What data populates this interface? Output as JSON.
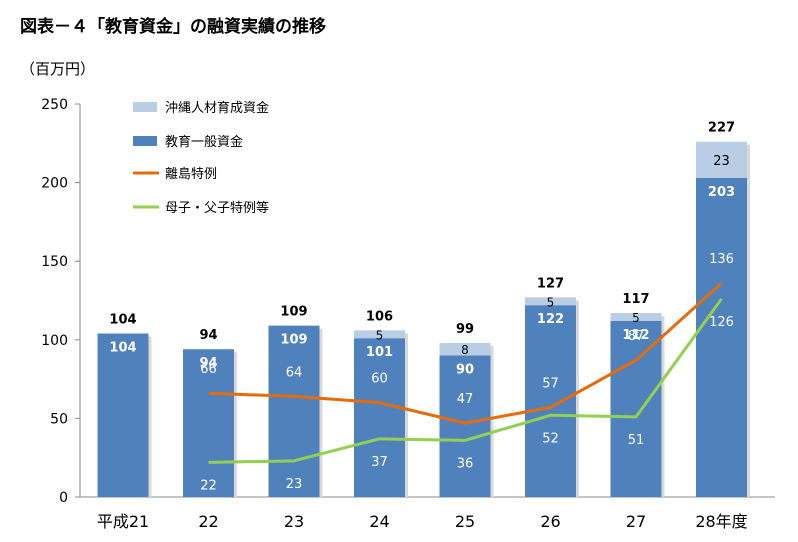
{
  "title": "図表－４「教育資金」の融資実績の推移",
  "unit_label": "（百万円）",
  "chart_data": {
    "type": "bar",
    "stacked": true,
    "categories": [
      "平成21",
      "22",
      "23",
      "24",
      "25",
      "26",
      "27",
      "28年度"
    ],
    "ylim": [
      0,
      250
    ],
    "yticks": [
      0,
      50,
      100,
      150,
      200,
      250
    ],
    "grid": false,
    "legend_position": "top-right",
    "series": [
      {
        "name": "教育一般資金",
        "kind": "bar",
        "color": "#4f81bd",
        "values": [
          104,
          94,
          109,
          101,
          90,
          122,
          112,
          203
        ]
      },
      {
        "name": "沖縄人材育成資金",
        "kind": "bar",
        "color": "#b9cde5",
        "values": [
          0,
          0,
          0,
          5,
          8,
          5,
          5,
          23
        ]
      },
      {
        "name": "離島特例",
        "kind": "line",
        "color": "#e46c0a",
        "values": [
          null,
          66,
          64,
          60,
          47,
          57,
          87,
          136
        ]
      },
      {
        "name": "母子・父子特例等",
        "kind": "line",
        "color": "#92d050",
        "values": [
          null,
          22,
          23,
          37,
          36,
          52,
          51,
          126
        ]
      }
    ],
    "totals": [
      104,
      94,
      109,
      106,
      99,
      127,
      117,
      227
    ]
  }
}
